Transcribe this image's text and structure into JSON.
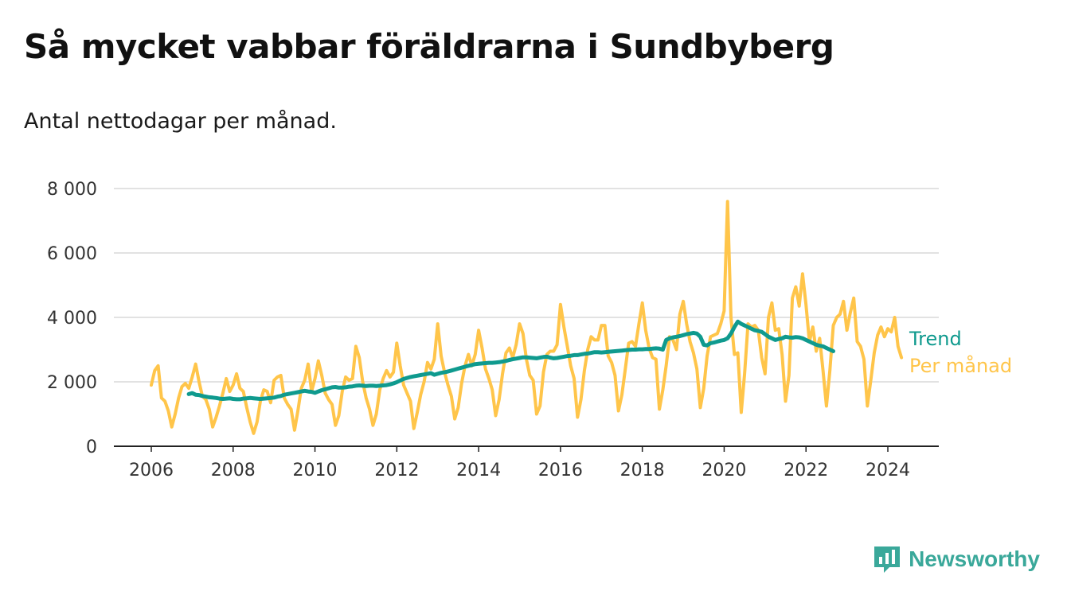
{
  "title": "Så mycket vabbar föräldrarna i Sundbyberg",
  "subtitle": "Antal nettodagar per månad.",
  "brand": {
    "name": "Newsworthy",
    "icon": "chart-bubble-icon"
  },
  "colors": {
    "trend": "#0f9a8e",
    "monthly": "#ffc54a",
    "brand": "#3aa89a",
    "grid": "#d9d9d9",
    "axis": "#222222"
  },
  "chart_data": {
    "type": "line",
    "xlabel": "",
    "ylabel": "",
    "ylim": [
      0,
      8000
    ],
    "yticks": [
      0,
      2000,
      4000,
      6000,
      8000
    ],
    "ytick_labels": [
      "0",
      "2 000",
      "4 000",
      "6 000",
      "8 000"
    ],
    "xticks": [
      2006,
      2008,
      2010,
      2012,
      2014,
      2016,
      2018,
      2020,
      2022,
      2024
    ],
    "xtick_labels": [
      "2006",
      "2008",
      "2010",
      "2012",
      "2014",
      "2016",
      "2018",
      "2020",
      "2022",
      "2024"
    ],
    "grid": true,
    "legend": "right, at line ends",
    "series": [
      {
        "name": "Per månad",
        "color": "#ffc54a",
        "start": "2006-01",
        "values": [
          1900,
          2350,
          2500,
          1500,
          1400,
          1100,
          600,
          1000,
          1500,
          1850,
          1950,
          1800,
          2150,
          2550,
          2000,
          1550,
          1450,
          1150,
          600,
          900,
          1250,
          1650,
          2100,
          1700,
          1900,
          2250,
          1800,
          1700,
          1200,
          750,
          400,
          750,
          1400,
          1750,
          1700,
          1350,
          2050,
          2150,
          2200,
          1500,
          1300,
          1150,
          500,
          1100,
          1800,
          2050,
          2550,
          1700,
          2100,
          2650,
          2200,
          1650,
          1450,
          1300,
          650,
          950,
          1700,
          2150,
          2050,
          2100,
          3100,
          2750,
          2000,
          1500,
          1150,
          650,
          1000,
          1750,
          2100,
          2350,
          2150,
          2300,
          3200,
          2500,
          1900,
          1650,
          1400,
          550,
          1050,
          1600,
          2000,
          2600,
          2400,
          2700,
          3800,
          2800,
          2300,
          1900,
          1550,
          850,
          1200,
          1950,
          2500,
          2850,
          2500,
          2850,
          3600,
          3050,
          2400,
          2100,
          1750,
          950,
          1450,
          2250,
          2900,
          3050,
          2750,
          3150,
          3800,
          3500,
          2700,
          2200,
          2050,
          1000,
          1250,
          2300,
          2850,
          2950,
          2950,
          3150,
          4400,
          3700,
          3100,
          2500,
          2100,
          900,
          1450,
          2350,
          3000,
          3400,
          3300,
          3300,
          3750,
          3750,
          2800,
          2600,
          2200,
          1100,
          1600,
          2400,
          3200,
          3250,
          3100,
          3800,
          4450,
          3600,
          3050,
          2750,
          2700,
          1150,
          1750,
          2500,
          3400,
          3300,
          3000,
          4100,
          4500,
          3800,
          3250,
          2900,
          2400,
          1200,
          1800,
          2800,
          3400,
          3450,
          3500,
          3800,
          4200,
          7600,
          4000,
          2850,
          2900,
          1050,
          2250,
          3800,
          3700,
          3750,
          3600,
          2750,
          2250,
          4000,
          4450,
          3600,
          3650,
          2850,
          1400,
          2200,
          4600,
          4950,
          4350,
          5350,
          4400,
          3250,
          3700,
          2950,
          3350,
          2350,
          1250,
          2350,
          3750,
          4000,
          4100,
          4500,
          3600,
          4150,
          4600,
          3250,
          3100,
          2700,
          1250,
          2050,
          2900,
          3450,
          3700,
          3400,
          3650,
          3550,
          4000,
          3100,
          2750
        ]
      },
      {
        "name": "Trend",
        "color": "#0f9a8e",
        "start": "2006-12",
        "values": [
          1620,
          1650,
          1600,
          1590,
          1560,
          1540,
          1520,
          1510,
          1500,
          1480,
          1470,
          1480,
          1490,
          1470,
          1460,
          1460,
          1480,
          1490,
          1500,
          1490,
          1480,
          1470,
          1480,
          1490,
          1500,
          1510,
          1540,
          1560,
          1600,
          1620,
          1640,
          1660,
          1680,
          1700,
          1720,
          1700,
          1690,
          1660,
          1700,
          1740,
          1770,
          1800,
          1830,
          1840,
          1820,
          1820,
          1830,
          1850,
          1860,
          1880,
          1890,
          1880,
          1870,
          1880,
          1880,
          1870,
          1880,
          1890,
          1900,
          1920,
          1950,
          1990,
          2040,
          2090,
          2120,
          2150,
          2170,
          2190,
          2210,
          2230,
          2250,
          2270,
          2220,
          2250,
          2280,
          2300,
          2320,
          2350,
          2380,
          2410,
          2440,
          2470,
          2500,
          2520,
          2550,
          2560,
          2570,
          2580,
          2590,
          2590,
          2600,
          2610,
          2630,
          2650,
          2680,
          2700,
          2720,
          2740,
          2760,
          2760,
          2750,
          2740,
          2730,
          2750,
          2770,
          2780,
          2750,
          2730,
          2740,
          2760,
          2780,
          2800,
          2810,
          2830,
          2830,
          2850,
          2870,
          2880,
          2900,
          2920,
          2920,
          2910,
          2920,
          2930,
          2940,
          2950,
          2960,
          2970,
          2980,
          2990,
          3000,
          3000,
          3010,
          3010,
          3020,
          3020,
          3030,
          3040,
          3030,
          3000,
          3300,
          3350,
          3380,
          3400,
          3420,
          3450,
          3480,
          3500,
          3520,
          3500,
          3400,
          3150,
          3130,
          3200,
          3220,
          3250,
          3280,
          3300,
          3350,
          3500,
          3700,
          3870,
          3800,
          3750,
          3700,
          3650,
          3600,
          3580,
          3550,
          3480,
          3400,
          3350,
          3300,
          3330,
          3350,
          3400,
          3380,
          3370,
          3390,
          3380,
          3350,
          3300,
          3250,
          3200,
          3150,
          3120,
          3100,
          3050,
          3000,
          2950
        ]
      }
    ]
  }
}
